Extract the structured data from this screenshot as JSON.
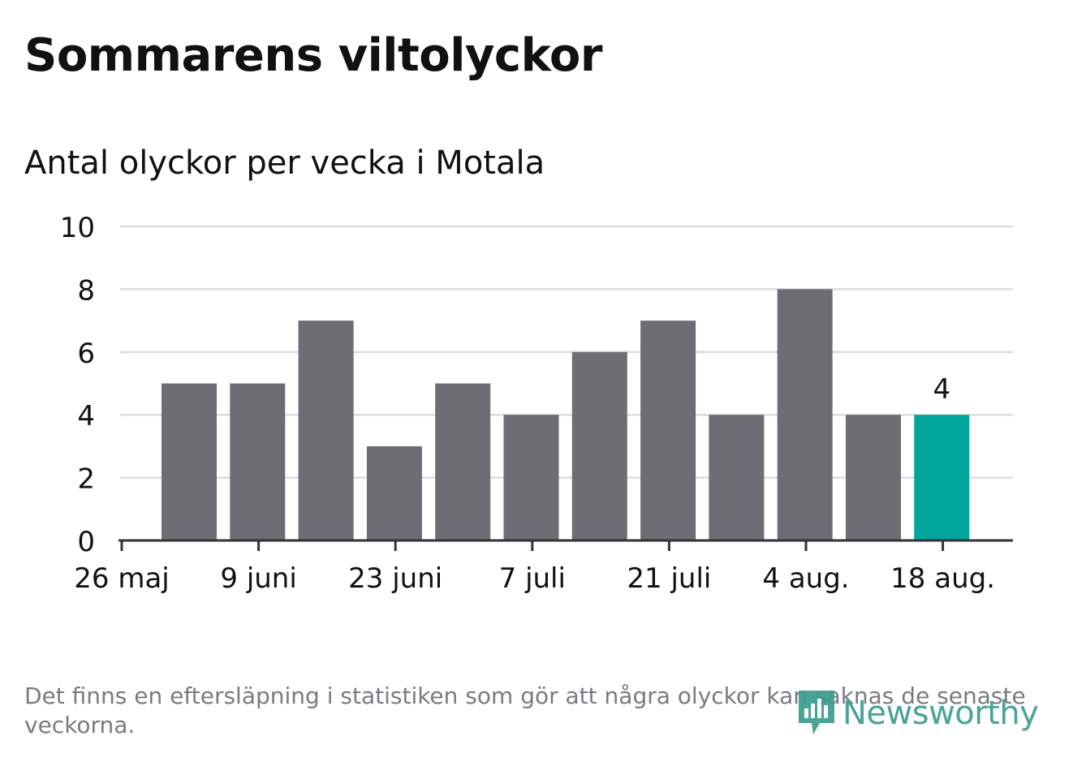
{
  "title": "Sommarens viltolyckor",
  "subtitle": "Antal olyckor per vecka i Motala",
  "footnote": "Det finns en eftersläpning i statistiken som gör att några olyckor kan saknas de senaste veckorna.",
  "logo": {
    "text": "Newsworthy",
    "icon": "newsworthy-logo-icon"
  },
  "colors": {
    "bar": "#6e6d73",
    "highlight": "#00a59b",
    "grid": "#dcdcdc",
    "axis": "#333333",
    "text": "#111111",
    "muted": "#7b7b80",
    "brand": "#3a9c8f"
  },
  "chart_data": {
    "type": "bar",
    "title": "Antal olyckor per vecka i Motala",
    "xlabel": "",
    "ylabel": "",
    "ylim": [
      0,
      10
    ],
    "yticks": [
      0,
      2,
      4,
      6,
      8,
      10
    ],
    "x_tick_labels": [
      "26 maj",
      "9 juni",
      "23 juni",
      "7 juli",
      "21 juli",
      "4 aug.",
      "18 aug."
    ],
    "values": [
      5,
      5,
      7,
      3,
      5,
      4,
      6,
      7,
      4,
      8,
      4,
      4
    ],
    "highlight_index": 11,
    "highlight_label": "4",
    "grid": true,
    "legend": "none"
  }
}
